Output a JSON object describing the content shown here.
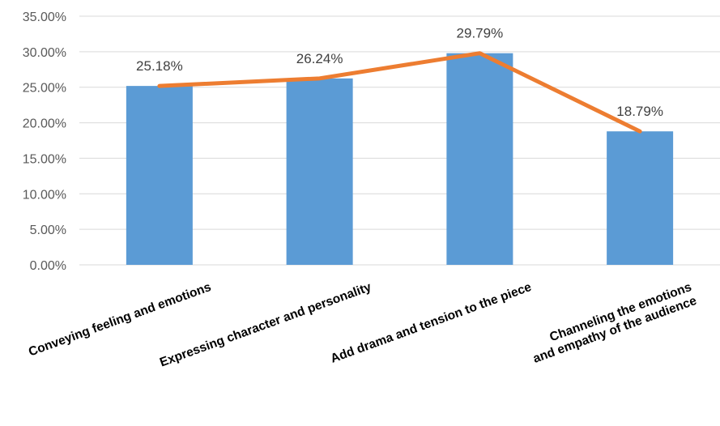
{
  "chart_data": {
    "type": "bar",
    "title": "",
    "xlabel": "",
    "ylabel": "",
    "ylim": [
      0,
      0.35
    ],
    "yticks": [
      0,
      0.05,
      0.1,
      0.15,
      0.2,
      0.25,
      0.3,
      0.35
    ],
    "ytick_labels": [
      "0.00%",
      "5.00%",
      "10.00%",
      "15.00%",
      "20.00%",
      "25.00%",
      "30.00%",
      "35.00%"
    ],
    "categories": [
      [
        "Conveying feeling and emotions"
      ],
      [
        "Expressing character and personality"
      ],
      [
        "Add drama and tension to the piece"
      ],
      [
        "Channeling the emotions",
        "and empathy of the audience"
      ]
    ],
    "values": [
      0.2518,
      0.2624,
      0.2979,
      0.1879
    ],
    "data_labels": [
      "25.18%",
      "26.24%",
      "29.79%",
      "18.79%"
    ],
    "overlay_line": true,
    "grid": true,
    "legend": "none",
    "colors": {
      "bar": "#5b9bd5",
      "line": "#ed7d31",
      "grid": "#d9d9d9"
    }
  }
}
